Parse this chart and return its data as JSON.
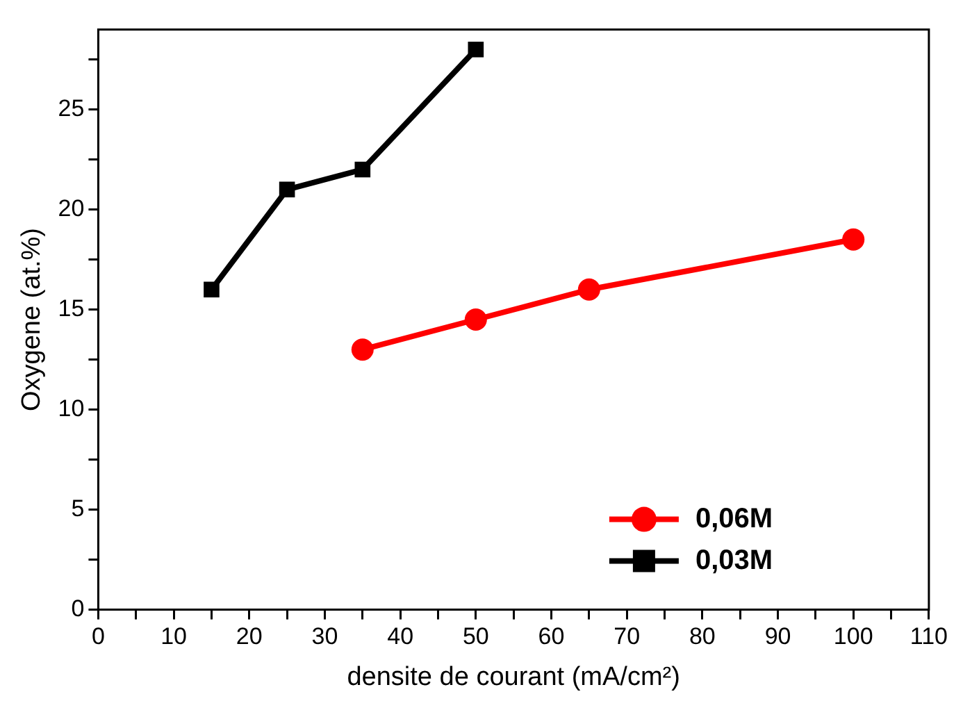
{
  "chart_data": {
    "type": "line",
    "xlabel": "densite de courant (mA/cm²)",
    "ylabel": "Oxygene (at.%)",
    "xlim": [
      0,
      110
    ],
    "xticks": [
      0,
      {
        "value": 5,
        "label": null
      },
      10,
      {
        "value": 15,
        "label": null
      },
      20,
      {
        "value": 25,
        "label": null
      },
      30,
      {
        "value": 35,
        "label": null
      },
      40,
      {
        "value": 45,
        "label": null
      },
      50,
      {
        "value": 55,
        "label": null
      },
      60,
      {
        "value": 65,
        "label": null
      },
      70,
      {
        "value": 75,
        "label": null
      },
      80,
      {
        "value": 85,
        "label": null
      },
      90,
      {
        "value": 95,
        "label": null
      },
      100,
      {
        "value": 105,
        "label": null
      },
      110
    ],
    "ylim": [
      0,
      29
    ],
    "yticks": [
      0,
      {
        "value": 2.5,
        "label": null
      },
      5,
      {
        "value": 7.5,
        "label": null
      },
      10,
      {
        "value": 12.5,
        "label": null
      },
      15,
      {
        "value": 17.5,
        "label": null
      },
      20,
      {
        "value": 22.5,
        "label": null
      },
      25,
      {
        "value": 27.5,
        "label": null
      }
    ],
    "grid": false,
    "legend": "bottom right",
    "line_style": "solid",
    "series": [
      {
        "name": "0,06M",
        "color": "#ff0000",
        "marker": "circle",
        "x": [
          35,
          50,
          65,
          100
        ],
        "values": [
          13,
          14.5,
          16,
          18.5
        ]
      },
      {
        "name": "0,03M",
        "color": "#000000",
        "marker": "square",
        "x": [
          15,
          25,
          35,
          50
        ],
        "values": [
          16,
          21,
          22,
          28
        ]
      }
    ]
  }
}
